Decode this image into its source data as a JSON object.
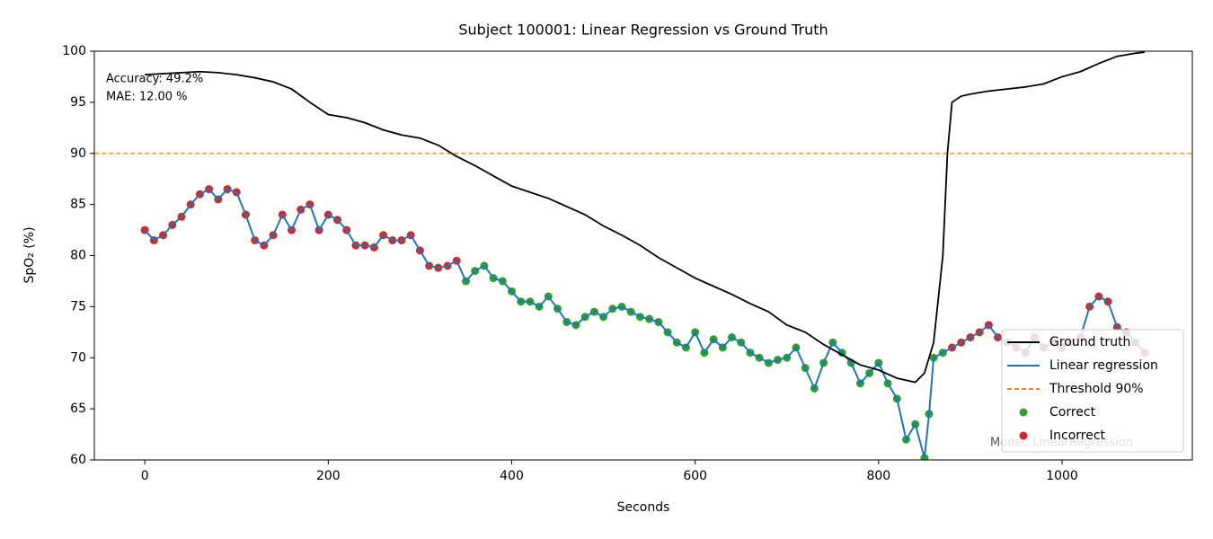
{
  "chart_data": {
    "type": "line",
    "title": "Subject 100001: Linear Regression vs Ground Truth",
    "x_label": "Seconds",
    "y_label": "SpO₂ (%)",
    "xlim": [
      -55,
      1142
    ],
    "ylim": [
      60,
      100
    ],
    "xticks": [
      0,
      200,
      400,
      600,
      800,
      1000
    ],
    "yticks": [
      60,
      65,
      70,
      75,
      80,
      85,
      90,
      95,
      100
    ],
    "legend": "lower right",
    "annotations": [
      "Accuracy: 49.2%",
      "MAE: 12.00 %",
      "Model: LinearRegression"
    ],
    "threshold": {
      "name": "Threshold 90%",
      "value": 90,
      "color": "#ff7f0e"
    },
    "series": [
      {
        "name": "Ground truth",
        "type": "line",
        "color": "#000000",
        "x": [
          0,
          20,
          40,
          60,
          80,
          100,
          120,
          140,
          160,
          180,
          200,
          220,
          240,
          260,
          280,
          300,
          320,
          340,
          360,
          380,
          400,
          420,
          440,
          460,
          480,
          500,
          520,
          540,
          560,
          580,
          600,
          620,
          640,
          660,
          680,
          700,
          720,
          740,
          760,
          780,
          800,
          820,
          840,
          850,
          860,
          870,
          875,
          880,
          890,
          900,
          920,
          940,
          960,
          980,
          1000,
          1020,
          1040,
          1060,
          1080,
          1090
        ],
        "values": [
          97.7,
          97.8,
          97.9,
          98.0,
          97.9,
          97.7,
          97.4,
          97.0,
          96.3,
          95.0,
          93.8,
          93.5,
          93.0,
          92.3,
          91.8,
          91.5,
          90.8,
          89.7,
          88.8,
          87.8,
          86.8,
          86.2,
          85.6,
          84.8,
          84.0,
          82.9,
          82.0,
          81.0,
          79.8,
          78.8,
          77.8,
          77.0,
          76.2,
          75.3,
          74.5,
          73.2,
          72.5,
          71.3,
          70.3,
          69.3,
          68.8,
          68.0,
          67.6,
          68.5,
          71.5,
          80.0,
          90.0,
          95.0,
          95.6,
          95.8,
          96.1,
          96.3,
          96.5,
          96.8,
          97.5,
          98.0,
          98.8,
          99.5,
          99.8,
          99.9
        ]
      },
      {
        "name": "Linear regression",
        "type": "line",
        "color": "#1f77b4",
        "x": [
          0,
          10,
          20,
          30,
          40,
          50,
          60,
          70,
          80,
          90,
          100,
          110,
          120,
          130,
          140,
          150,
          160,
          170,
          180,
          190,
          200,
          210,
          220,
          230,
          240,
          250,
          260,
          270,
          280,
          290,
          300,
          310,
          320,
          330,
          340,
          350,
          360,
          370,
          380,
          390,
          400,
          410,
          420,
          430,
          440,
          450,
          460,
          470,
          480,
          490,
          500,
          510,
          520,
          530,
          540,
          550,
          560,
          570,
          580,
          590,
          600,
          610,
          620,
          630,
          640,
          650,
          660,
          670,
          680,
          690,
          700,
          710,
          720,
          730,
          740,
          750,
          760,
          770,
          780,
          790,
          800,
          810,
          820,
          830,
          840,
          850,
          855,
          860,
          870,
          880,
          890,
          900,
          910,
          920,
          930,
          940,
          950,
          960,
          970,
          980,
          990,
          1000,
          1010,
          1020,
          1030,
          1040,
          1050,
          1060,
          1070,
          1080,
          1090
        ],
        "values": [
          82.5,
          81.5,
          82.0,
          83.0,
          83.8,
          85.0,
          86.0,
          86.5,
          85.5,
          86.5,
          86.2,
          84.0,
          81.5,
          81.0,
          82.0,
          84.0,
          82.5,
          84.5,
          85.0,
          82.5,
          84.0,
          83.5,
          82.5,
          81.0,
          81.0,
          80.8,
          82.0,
          81.5,
          81.5,
          82.0,
          80.5,
          79.0,
          78.8,
          79.0,
          79.5,
          77.5,
          78.5,
          79.0,
          77.8,
          77.5,
          76.5,
          75.5,
          75.5,
          75.0,
          76.0,
          74.8,
          73.5,
          73.2,
          74.0,
          74.5,
          74.0,
          74.8,
          75.0,
          74.5,
          74.0,
          73.8,
          73.5,
          72.5,
          71.5,
          71.0,
          72.5,
          70.5,
          71.8,
          71.0,
          72.0,
          71.5,
          70.5,
          70.0,
          69.5,
          69.8,
          70.0,
          71.0,
          69.0,
          67.0,
          69.5,
          71.5,
          70.5,
          69.5,
          67.5,
          68.5,
          69.5,
          67.5,
          66.0,
          62.0,
          63.5,
          60.2,
          64.5,
          70.0,
          70.5,
          71.0,
          71.5,
          72.0,
          72.5,
          73.2,
          72.0,
          71.5,
          71.0,
          70.5,
          72.0,
          71.0,
          71.5,
          71.0,
          71.5,
          72.0,
          75.0,
          76.0,
          75.5,
          73.0,
          72.5,
          71.5,
          70.5
        ]
      },
      {
        "name": "Correct",
        "type": "scatter",
        "color": "#2ca02c",
        "x": [
          350,
          360,
          370,
          380,
          390,
          400,
          410,
          420,
          430,
          440,
          450,
          460,
          470,
          480,
          490,
          500,
          510,
          520,
          530,
          540,
          550,
          560,
          570,
          580,
          590,
          600,
          610,
          620,
          630,
          640,
          650,
          660,
          670,
          680,
          690,
          700,
          710,
          720,
          730,
          740,
          750,
          760,
          770,
          780,
          790,
          800,
          810,
          820,
          830,
          840,
          850,
          855,
          860,
          870
        ],
        "values": [
          77.5,
          78.5,
          79.0,
          77.8,
          77.5,
          76.5,
          75.5,
          75.5,
          75.0,
          76.0,
          74.8,
          73.5,
          73.2,
          74.0,
          74.5,
          74.0,
          74.8,
          75.0,
          74.5,
          74.0,
          73.8,
          73.5,
          72.5,
          71.5,
          71.0,
          72.5,
          70.5,
          71.8,
          71.0,
          72.0,
          71.5,
          70.5,
          70.0,
          69.5,
          69.8,
          70.0,
          71.0,
          69.0,
          67.0,
          69.5,
          71.5,
          70.5,
          69.5,
          67.5,
          68.5,
          69.5,
          67.5,
          66.0,
          62.0,
          63.5,
          60.2,
          64.5,
          70.0,
          70.5
        ]
      },
      {
        "name": "Incorrect",
        "type": "scatter",
        "color": "#d62728",
        "x": [
          0,
          10,
          20,
          30,
          40,
          50,
          60,
          70,
          80,
          90,
          100,
          110,
          120,
          130,
          140,
          150,
          160,
          170,
          180,
          190,
          200,
          210,
          220,
          230,
          240,
          250,
          260,
          270,
          280,
          290,
          300,
          310,
          320,
          330,
          340,
          880,
          890,
          900,
          910,
          920,
          930,
          940,
          950,
          960,
          970,
          980,
          990,
          1000,
          1010,
          1020,
          1030,
          1040,
          1050,
          1060,
          1070,
          1080,
          1090
        ],
        "values": [
          82.5,
          81.5,
          82.0,
          83.0,
          83.8,
          85.0,
          86.0,
          86.5,
          85.5,
          86.5,
          86.2,
          84.0,
          81.5,
          81.0,
          82.0,
          84.0,
          82.5,
          84.5,
          85.0,
          82.5,
          84.0,
          83.5,
          82.5,
          81.0,
          81.0,
          80.8,
          82.0,
          81.5,
          81.5,
          82.0,
          80.5,
          79.0,
          78.8,
          79.0,
          79.5,
          71.0,
          71.5,
          72.0,
          72.5,
          73.2,
          72.0,
          71.5,
          71.0,
          70.5,
          72.0,
          71.0,
          71.5,
          71.0,
          71.5,
          72.0,
          75.0,
          76.0,
          75.5,
          73.0,
          72.5,
          71.5,
          70.5
        ]
      }
    ]
  }
}
